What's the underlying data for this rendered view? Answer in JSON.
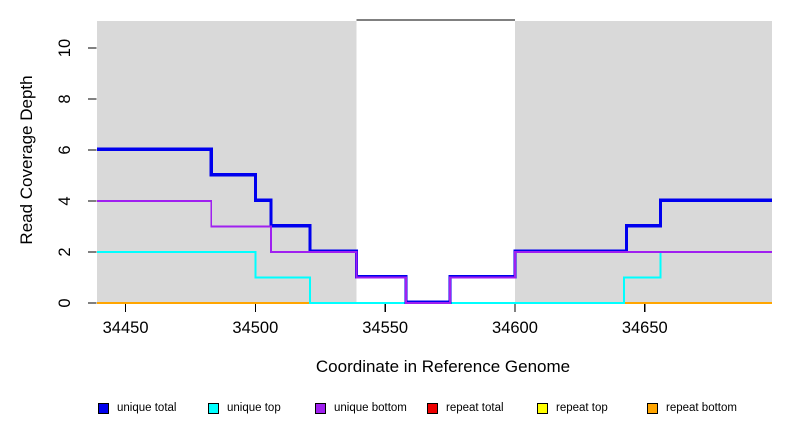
{
  "figure": {
    "background": "#FFFFFF",
    "shade_color": "#D9D9D9",
    "marker_color": "#000000"
  },
  "legend": {
    "items": [
      {
        "label": "unique total",
        "color": "#0000EE"
      },
      {
        "label": "unique top",
        "color": "#00FFFF"
      },
      {
        "label": "unique bottom",
        "color": "#A020F0"
      },
      {
        "label": "repeat total",
        "color": "#EE0000"
      },
      {
        "label": "repeat top",
        "color": "#FFFF00"
      },
      {
        "label": "repeat bottom",
        "color": "#FFA500"
      }
    ]
  },
  "chart_data": {
    "type": "line",
    "step": true,
    "title": "",
    "xlabel": "Coordinate in Reference Genome",
    "ylabel": "Read Coverage Depth",
    "xlim": [
      34439,
      34699
    ],
    "ylim": [
      0,
      11.1
    ],
    "x_ticks": [
      34450,
      34500,
      34550,
      34600,
      34650
    ],
    "y_ticks": [
      0,
      2,
      4,
      6,
      8,
      10
    ],
    "grid": false,
    "legend_position": "bottom",
    "shaded_regions": [
      {
        "start": 34439,
        "end": 34539
      },
      {
        "start": 34600,
        "end": 34699
      }
    ],
    "repeat_region": {
      "start": 34539,
      "end": 34600,
      "marker_value": 11.1
    },
    "series": [
      {
        "name": "unique total",
        "color": "#0000EE",
        "steps": [
          [
            34439,
            6
          ],
          [
            34483,
            5
          ],
          [
            34500,
            4
          ],
          [
            34506,
            3
          ],
          [
            34521,
            2
          ],
          [
            34539,
            1
          ],
          [
            34558,
            0
          ],
          [
            34575,
            1
          ],
          [
            34600,
            2
          ],
          [
            34643,
            3
          ],
          [
            34656,
            4
          ],
          [
            34699,
            4
          ]
        ]
      },
      {
        "name": "unique top",
        "color": "#00FFFF",
        "steps": [
          [
            34439,
            2
          ],
          [
            34500,
            1
          ],
          [
            34521,
            0
          ],
          [
            34642,
            1
          ],
          [
            34656,
            2
          ],
          [
            34699,
            2
          ]
        ]
      },
      {
        "name": "unique bottom",
        "color": "#A020F0",
        "steps": [
          [
            34439,
            4
          ],
          [
            34483,
            3
          ],
          [
            34506,
            2
          ],
          [
            34539,
            1
          ],
          [
            34558,
            0
          ],
          [
            34575,
            1
          ],
          [
            34600,
            2
          ],
          [
            34699,
            2
          ]
        ]
      },
      {
        "name": "repeat total",
        "color": "#EE0000",
        "steps": [
          [
            34439,
            0
          ],
          [
            34699,
            0
          ]
        ]
      },
      {
        "name": "repeat top",
        "color": "#FFFF00",
        "steps": [
          [
            34439,
            0
          ],
          [
            34699,
            0
          ]
        ]
      },
      {
        "name": "repeat bottom",
        "color": "#FFA500",
        "steps": [
          [
            34439,
            0
          ],
          [
            34699,
            0
          ]
        ]
      }
    ]
  }
}
